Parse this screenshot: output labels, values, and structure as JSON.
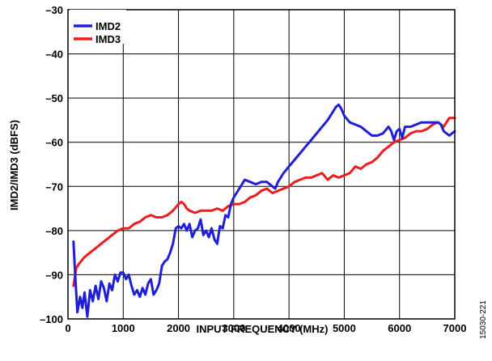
{
  "chart_data": {
    "type": "line",
    "xlabel": "INPUT FREQUENCY (MHz)",
    "ylabel": "IMD2/IMD3 (dBFS)",
    "xlim": [
      0,
      7000
    ],
    "ylim": [
      -100,
      -30
    ],
    "xticks": [
      0,
      1000,
      2000,
      3000,
      4000,
      5000,
      6000,
      7000
    ],
    "yticks": [
      -100,
      -90,
      -80,
      -70,
      -60,
      -50,
      -40,
      -30
    ],
    "x_tick_labels": [
      "0",
      "1000",
      "2000",
      "3000",
      "4000",
      "5000",
      "6000",
      "7000"
    ],
    "y_tick_labels": [
      "–100",
      "–90",
      "–80",
      "–70",
      "–60",
      "–50",
      "–40",
      "–30"
    ],
    "grid": true,
    "legend_position": "top-left",
    "figure_id": "15030-221",
    "series": [
      {
        "name": "IMD2",
        "color": "#1f1fd6",
        "x": [
          100,
          130,
          170,
          220,
          260,
          300,
          350,
          400,
          450,
          500,
          550,
          600,
          650,
          700,
          750,
          800,
          850,
          900,
          950,
          1000,
          1050,
          1100,
          1150,
          1200,
          1250,
          1300,
          1350,
          1400,
          1450,
          1500,
          1550,
          1600,
          1650,
          1700,
          1750,
          1800,
          1850,
          1900,
          1950,
          2000,
          2050,
          2100,
          2150,
          2200,
          2250,
          2300,
          2350,
          2400,
          2450,
          2500,
          2550,
          2600,
          2650,
          2700,
          2750,
          2800,
          2850,
          2900,
          2950,
          3000,
          3050,
          3100,
          3150,
          3200,
          3300,
          3400,
          3500,
          3600,
          3700,
          3750,
          3800,
          3900,
          4000,
          4100,
          4200,
          4300,
          4400,
          4500,
          4600,
          4700,
          4800,
          4850,
          4900,
          4950,
          5000,
          5100,
          5200,
          5300,
          5400,
          5500,
          5600,
          5700,
          5800,
          5850,
          5900,
          5950,
          6000,
          6050,
          6100,
          6200,
          6300,
          6400,
          6500,
          6600,
          6700,
          6750,
          6800,
          6900,
          7000
        ],
        "values": [
          -82.5,
          -90,
          -98.5,
          -95,
          -97.5,
          -94,
          -99.5,
          -93.5,
          -96,
          -92.5,
          -95.5,
          -91.5,
          -93,
          -96,
          -92,
          -93.5,
          -90,
          -91.5,
          -89.5,
          -89.5,
          -91,
          -90,
          -92.5,
          -94.5,
          -93.5,
          -95,
          -93,
          -94.5,
          -92,
          -91,
          -94.5,
          -93.5,
          -92,
          -88,
          -87,
          -86.5,
          -85,
          -83,
          -79.5,
          -79,
          -79.5,
          -78.5,
          -80,
          -78.5,
          -81.5,
          -80,
          -79.5,
          -77.5,
          -81,
          -80,
          -81.5,
          -79.5,
          -82,
          -83,
          -79,
          -79.5,
          -76.5,
          -77,
          -74,
          -72.5,
          -71.5,
          -70.5,
          -69.5,
          -68.5,
          -69,
          -69.5,
          -69,
          -69,
          -70,
          -70.5,
          -69,
          -67,
          -65.5,
          -64,
          -62.5,
          -61,
          -59.5,
          -58,
          -56.5,
          -55,
          -53,
          -52,
          -51.5,
          -52.5,
          -54,
          -55.5,
          -56,
          -56.5,
          -57.5,
          -58.5,
          -58.5,
          -58,
          -56.5,
          -57.5,
          -59.5,
          -57.5,
          -57,
          -59,
          -56.5,
          -56.5,
          -56,
          -55.5,
          -55.5,
          -55.5,
          -55.5,
          -56,
          -57.5,
          -58.5,
          -57.5
        ]
      },
      {
        "name": "IMD3",
        "color": "#ee1c1c",
        "x": [
          100,
          150,
          200,
          300,
          400,
          500,
          600,
          700,
          800,
          900,
          1000,
          1100,
          1200,
          1300,
          1400,
          1500,
          1600,
          1700,
          1800,
          1900,
          2000,
          2050,
          2100,
          2150,
          2200,
          2300,
          2400,
          2500,
          2600,
          2700,
          2800,
          2900,
          3000,
          3100,
          3200,
          3300,
          3400,
          3500,
          3600,
          3700,
          3800,
          3900,
          4000,
          4100,
          4200,
          4300,
          4400,
          4500,
          4600,
          4700,
          4800,
          4900,
          5000,
          5100,
          5200,
          5300,
          5400,
          5500,
          5600,
          5700,
          5800,
          5900,
          6000,
          6100,
          6200,
          6300,
          6400,
          6500,
          6600,
          6700,
          6800,
          6900,
          7000
        ],
        "values": [
          -92.5,
          -88.5,
          -87.5,
          -86,
          -85,
          -84,
          -83,
          -82,
          -81,
          -80,
          -79.5,
          -79.5,
          -78.5,
          -78,
          -77,
          -76.5,
          -77,
          -77,
          -76.5,
          -75.5,
          -74,
          -73.5,
          -74,
          -75,
          -75.5,
          -76,
          -75.5,
          -75.5,
          -75.5,
          -75,
          -75.5,
          -74.5,
          -74,
          -74,
          -73.5,
          -72.5,
          -72,
          -71,
          -70.5,
          -71.5,
          -71,
          -70.5,
          -70,
          -69,
          -68.5,
          -68,
          -68,
          -67.5,
          -67,
          -68.5,
          -67.5,
          -68,
          -67.5,
          -67,
          -65.5,
          -66,
          -65,
          -64.5,
          -63.5,
          -62,
          -61,
          -60,
          -59.5,
          -59,
          -58,
          -57.5,
          -57.5,
          -57,
          -56,
          -55.5,
          -56.5,
          -54.5,
          -54.5
        ]
      }
    ]
  }
}
